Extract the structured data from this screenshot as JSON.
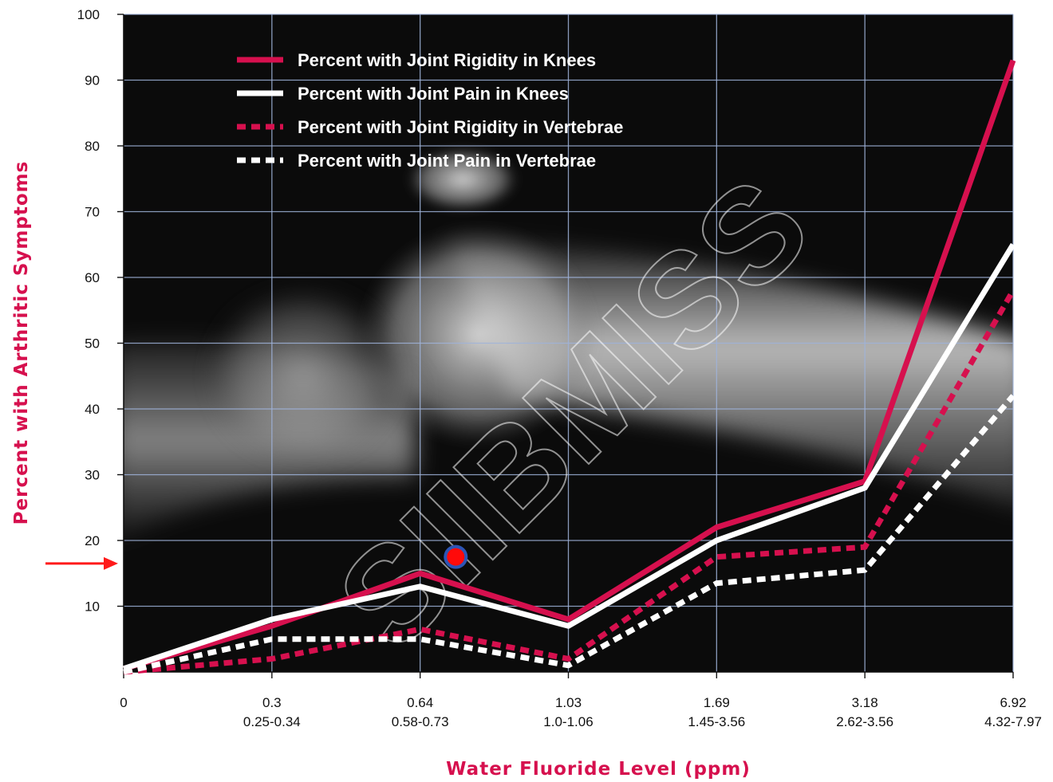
{
  "colors": {
    "accent": "#d6104e",
    "line_white": "#ffffff",
    "grid": "#9fb3da",
    "plot_bg": "#0b0b0b",
    "marker_fill": "#ff0a0a",
    "marker_ring": "#2d55b5",
    "arrow": "#ff1a1a"
  },
  "watermark": {
    "text": "SIIBMISS"
  },
  "chart_data": {
    "type": "line",
    "title": "",
    "xlabel": "Water Fluoride Level (ppm)",
    "ylabel": "Percent with Arthritic Symptoms",
    "ylim": [
      0,
      100
    ],
    "yticks": [
      "10",
      "20",
      "30",
      "40",
      "50",
      "60",
      "70",
      "80",
      "90",
      "100"
    ],
    "categories": [
      {
        "value": "0",
        "range": ""
      },
      {
        "value": "0.3",
        "range": "0.25-0.34"
      },
      {
        "value": "0.64",
        "range": "0.58-0.73"
      },
      {
        "value": "1.03",
        "range": "1.0-1.06"
      },
      {
        "value": "1.69",
        "range": "1.45-3.56"
      },
      {
        "value": "3.18",
        "range": "2.62-3.56"
      },
      {
        "value": "6.92",
        "range": "4.32-7.97"
      }
    ],
    "series": [
      {
        "name": "Percent with Joint Rigidity in Knees",
        "color": "#d6104e",
        "style": "solid",
        "values": [
          0.5,
          7,
          15,
          8,
          22,
          29,
          93
        ]
      },
      {
        "name": "Percent with Joint Pain in Knees",
        "color": "#ffffff",
        "style": "solid",
        "values": [
          0.5,
          8,
          13,
          7,
          20,
          28,
          65
        ]
      },
      {
        "name": "Percent with Joint Rigidity in Vertebrae",
        "color": "#d6104e",
        "style": "dashed",
        "values": [
          0,
          2,
          6.5,
          2,
          17.5,
          19,
          58
        ]
      },
      {
        "name": "Percent with Joint Pain in Vertebrae",
        "color": "#ffffff",
        "style": "dashed",
        "values": [
          0,
          5,
          5,
          1,
          13.5,
          15.5,
          42
        ]
      }
    ],
    "grid": true,
    "legend": "top-left",
    "annotations": {
      "marker": {
        "x_index": 2.24,
        "y": 17.5
      },
      "arrow_y": 16.5
    }
  }
}
